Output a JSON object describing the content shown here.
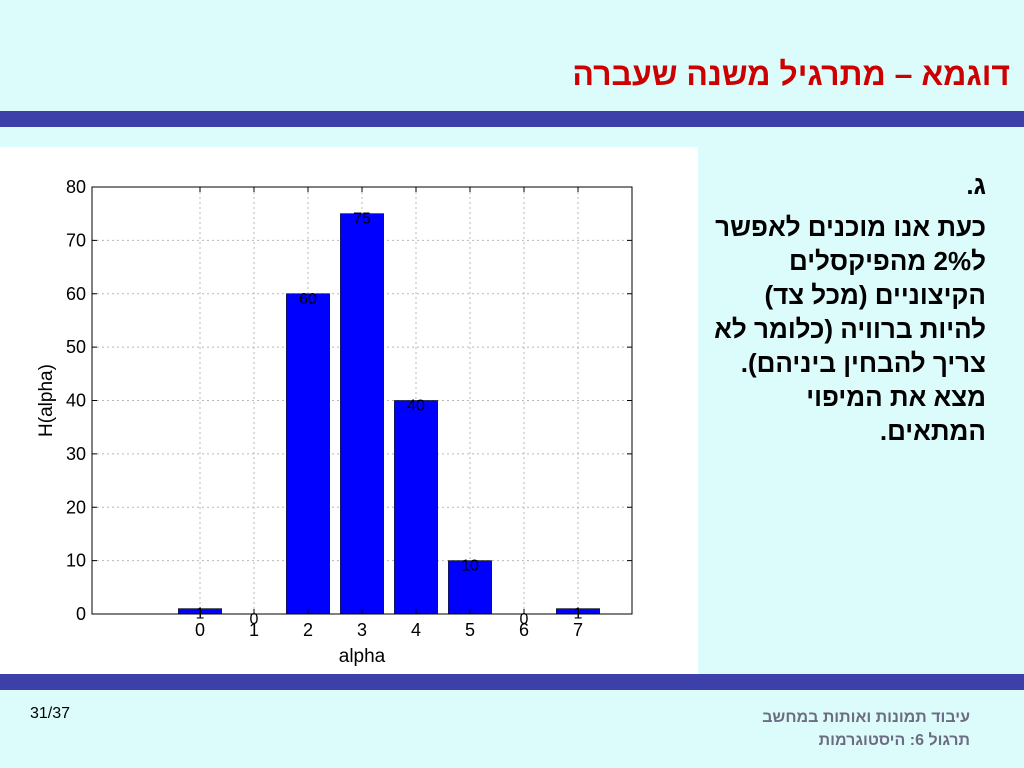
{
  "header": {
    "title": "דוגמא – מתרגיל משנה שעברה"
  },
  "body": {
    "item_label": "ג.",
    "lines": [
      "כעת אנו מוכנים לאפשר",
      "ל2% מהפיקסלים",
      "הקיצוניים (מכל צד)",
      "להיות ברוויה (כלומר לא",
      "צריך להבחין ביניהם).",
      "מצא את המיפוי",
      "המתאים."
    ]
  },
  "footer": {
    "page_number": "31/37",
    "course": "עיבוד תמונות ואותות במחשב",
    "lesson": "תרגול 6: היסטוגרמות"
  },
  "colors": {
    "title": "#cc0000",
    "band": "#3d40a8",
    "background": "#dcfcfb",
    "bar": "#0000ff",
    "footer_text": "#6c6c82"
  },
  "chart_data": {
    "type": "bar",
    "categories": [
      "0",
      "1",
      "2",
      "3",
      "4",
      "5",
      "6",
      "7"
    ],
    "values": [
      1,
      0,
      60,
      75,
      40,
      10,
      0,
      1
    ],
    "data_labels": [
      "1",
      "0",
      "60",
      "75",
      "40",
      "10",
      "0",
      "1"
    ],
    "title": "",
    "xlabel": "alpha",
    "ylabel": "H(alpha)",
    "ylim": [
      0,
      80
    ],
    "xlim": [
      -2,
      8
    ],
    "yticks": [
      0,
      10,
      20,
      30,
      40,
      50,
      60,
      70,
      80
    ],
    "grid": true,
    "legend": false
  }
}
